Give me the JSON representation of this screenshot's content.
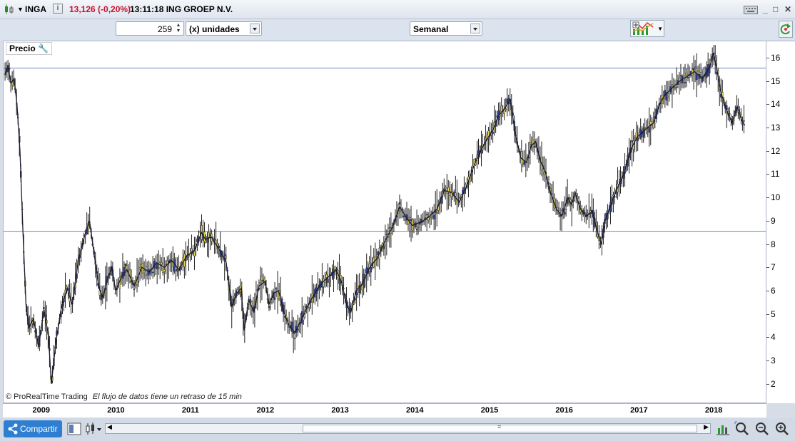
{
  "titlebar": {
    "ticker": "INGA",
    "info_glyph": "i",
    "quote": "13,126 (-0,20%)",
    "time_name": "13:11:18 ING GROEP N.V."
  },
  "toolbar": {
    "units_value": "259",
    "units_label": "(x) unidades",
    "period": "Semanal"
  },
  "chart": {
    "panel_label": "Precio",
    "footnote_source": "© ProRealTime Trading",
    "footnote_delay": "El flujo de datos tiene un retraso de 15 min",
    "bottombar_share": "Compartir"
  },
  "chart_data": {
    "type": "line",
    "title": "",
    "xlabel": "",
    "ylabel": "",
    "x_tick_labels": [
      "2009",
      "2010",
      "2011",
      "2012",
      "2013",
      "2014",
      "2015",
      "2016",
      "2017",
      "2018"
    ],
    "y_tick_labels": [
      "2",
      "3",
      "4",
      "5",
      "6",
      "7",
      "8",
      "9",
      "10",
      "11",
      "12",
      "13",
      "14",
      "15",
      "16"
    ],
    "ylim": [
      1.2,
      16.7
    ],
    "xlim": [
      2008.5,
      2018.7
    ],
    "horizontal_lines": [
      15.55,
      8.55
    ],
    "series": [
      {
        "x": [
          2008.52,
          2008.56,
          2008.6,
          2008.64,
          2008.68,
          2008.72,
          2008.76,
          2008.8,
          2008.84,
          2008.9,
          2008.97,
          2009.04,
          2009.1,
          2009.14,
          2009.2,
          2009.27,
          2009.35,
          2009.42,
          2009.5,
          2009.58,
          2009.65,
          2009.72,
          2009.78,
          2009.83,
          2009.88,
          2009.95,
          2010.0,
          2010.08,
          2010.15,
          2010.25,
          2010.35,
          2010.45,
          2010.55,
          2010.65,
          2010.75,
          2010.85,
          2010.95,
          2011.05,
          2011.15,
          2011.2,
          2011.28,
          2011.38,
          2011.48,
          2011.55,
          2011.62,
          2011.68,
          2011.72,
          2011.78,
          2011.85,
          2011.92,
          2012.0,
          2012.05,
          2012.12,
          2012.18,
          2012.25,
          2012.32,
          2012.4,
          2012.48,
          2012.55,
          2012.65,
          2012.75,
          2012.85,
          2012.95,
          2013.02,
          2013.1,
          2013.15,
          2013.22,
          2013.3,
          2013.4,
          2013.5,
          2013.6,
          2013.7,
          2013.8,
          2013.9,
          2013.97,
          2014.05,
          2014.12,
          2014.2,
          2014.3,
          2014.4,
          2014.5,
          2014.6,
          2014.7,
          2014.8,
          2014.9,
          2014.97,
          2015.05,
          2015.12,
          2015.2,
          2015.28,
          2015.35,
          2015.42,
          2015.5,
          2015.56,
          2015.62,
          2015.68,
          2015.75,
          2015.82,
          2015.9,
          2015.97,
          2016.05,
          2016.1,
          2016.15,
          2016.22,
          2016.3,
          2016.38,
          2016.45,
          2016.5,
          2016.55,
          2016.62,
          2016.7,
          2016.8,
          2016.9,
          2016.98,
          2017.05,
          2017.12,
          2017.2,
          2017.28,
          2017.35,
          2017.45,
          2017.55,
          2017.65,
          2017.75,
          2017.85,
          2017.95,
          2018.0,
          2018.04,
          2018.1,
          2018.17,
          2018.25,
          2018.32,
          2018.38,
          2018.42
        ],
        "y": [
          15.3,
          15.6,
          14.9,
          15.1,
          14.0,
          12.0,
          8.5,
          5.4,
          4.4,
          4.8,
          3.6,
          5.2,
          4.1,
          2.0,
          3.8,
          5.2,
          6.1,
          5.4,
          7.3,
          8.3,
          9.0,
          7.4,
          6.1,
          5.7,
          6.4,
          7.0,
          6.0,
          6.6,
          6.9,
          6.2,
          7.0,
          6.8,
          7.2,
          7.0,
          7.3,
          6.9,
          7.5,
          7.7,
          8.5,
          8.2,
          8.3,
          7.8,
          7.2,
          5.3,
          5.9,
          6.1,
          4.3,
          5.6,
          5.1,
          6.2,
          6.4,
          5.4,
          5.9,
          6.0,
          5.1,
          4.5,
          4.2,
          4.7,
          5.2,
          5.8,
          6.3,
          6.6,
          6.9,
          6.4,
          5.3,
          5.1,
          6.0,
          6.3,
          7.0,
          7.4,
          8.1,
          8.7,
          9.6,
          9.1,
          8.8,
          8.9,
          9.0,
          9.2,
          9.5,
          10.3,
          10.2,
          9.8,
          10.5,
          11.4,
          12.1,
          12.5,
          12.9,
          13.5,
          13.8,
          14.2,
          12.7,
          11.7,
          11.5,
          12.2,
          12.4,
          11.6,
          11.1,
          10.2,
          9.5,
          9.2,
          10.0,
          9.7,
          10.2,
          9.5,
          9.2,
          9.4,
          8.5,
          8.0,
          9.0,
          9.6,
          10.3,
          11.0,
          12.1,
          12.6,
          12.8,
          13.0,
          13.2,
          14.0,
          14.4,
          14.7,
          15.0,
          15.2,
          15.4,
          15.1,
          15.6,
          16.2,
          15.6,
          14.5,
          13.8,
          13.2,
          13.9,
          13.3,
          13.1
        ]
      }
    ]
  }
}
